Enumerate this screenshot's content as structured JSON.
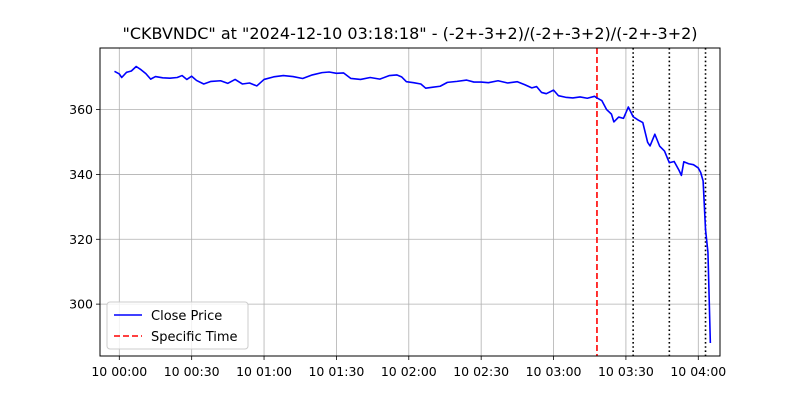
{
  "chart_data": {
    "type": "line",
    "title": "\"CKBVNDC\" at \"2024-12-10 03:18:18\" - (-2+-3+2)/(-2+-3+2)/(-2+-3+2)",
    "xlabel": "",
    "ylabel": "",
    "x_ticks": [
      "10 00:00",
      "10 00:30",
      "10 01:00",
      "10 01:30",
      "10 02:00",
      "10 02:30",
      "10 03:00",
      "10 03:30",
      "10 04:00"
    ],
    "y_ticks": [
      "300",
      "320",
      "340",
      "360"
    ],
    "xlim": [
      "2024-12-09 23:52",
      "2024-12-10 04:09"
    ],
    "ylim": [
      284,
      379
    ],
    "grid": true,
    "legend_position": "lower-left",
    "series": [
      {
        "name": "Close Price",
        "color": "#0000ff",
        "style": "solid",
        "points": [
          [
            "2024-12-09 23:58",
            371.8
          ],
          [
            "2024-12-10 00:00",
            371.0
          ],
          [
            "2024-12-10 00:01",
            369.9
          ],
          [
            "2024-12-10 00:03",
            371.5
          ],
          [
            "2024-12-10 00:05",
            371.9
          ],
          [
            "2024-12-10 00:07",
            373.3
          ],
          [
            "2024-12-10 00:09",
            372.3
          ],
          [
            "2024-12-10 00:11",
            371.1
          ],
          [
            "2024-12-10 00:13",
            369.4
          ],
          [
            "2024-12-10 00:15",
            370.2
          ],
          [
            "2024-12-10 00:18",
            369.8
          ],
          [
            "2024-12-10 00:21",
            369.7
          ],
          [
            "2024-12-10 00:24",
            369.9
          ],
          [
            "2024-12-10 00:26",
            370.5
          ],
          [
            "2024-12-10 00:28",
            369.3
          ],
          [
            "2024-12-10 00:30",
            370.3
          ],
          [
            "2024-12-10 00:32",
            369.0
          ],
          [
            "2024-12-10 00:35",
            367.9
          ],
          [
            "2024-12-10 00:38",
            368.7
          ],
          [
            "2024-12-10 00:42",
            368.9
          ],
          [
            "2024-12-10 00:45",
            368.1
          ],
          [
            "2024-12-10 00:48",
            369.3
          ],
          [
            "2024-12-10 00:51",
            367.9
          ],
          [
            "2024-12-10 00:54",
            368.2
          ],
          [
            "2024-12-10 00:57",
            367.3
          ],
          [
            "2024-12-10 01:00",
            369.3
          ],
          [
            "2024-12-10 01:04",
            370.1
          ],
          [
            "2024-12-10 01:08",
            370.5
          ],
          [
            "2024-12-10 01:12",
            370.2
          ],
          [
            "2024-12-10 01:16",
            369.6
          ],
          [
            "2024-12-10 01:20",
            370.7
          ],
          [
            "2024-12-10 01:24",
            371.4
          ],
          [
            "2024-12-10 01:27",
            371.6
          ],
          [
            "2024-12-10 01:30",
            371.2
          ],
          [
            "2024-12-10 01:33",
            371.3
          ],
          [
            "2024-12-10 01:36",
            369.6
          ],
          [
            "2024-12-10 01:40",
            369.3
          ],
          [
            "2024-12-10 01:44",
            369.9
          ],
          [
            "2024-12-10 01:48",
            369.4
          ],
          [
            "2024-12-10 01:52",
            370.5
          ],
          [
            "2024-12-10 01:55",
            370.7
          ],
          [
            "2024-12-10 01:57",
            370.1
          ],
          [
            "2024-12-10 01:59",
            368.6
          ],
          [
            "2024-12-10 02:02",
            368.3
          ],
          [
            "2024-12-10 02:05",
            367.9
          ],
          [
            "2024-12-10 02:07",
            366.6
          ],
          [
            "2024-12-10 02:10",
            366.9
          ],
          [
            "2024-12-10 02:13",
            367.2
          ],
          [
            "2024-12-10 02:16",
            368.4
          ],
          [
            "2024-12-10 02:20",
            368.7
          ],
          [
            "2024-12-10 02:24",
            369.1
          ],
          [
            "2024-12-10 02:27",
            368.5
          ],
          [
            "2024-12-10 02:30",
            368.5
          ],
          [
            "2024-12-10 02:33",
            368.3
          ],
          [
            "2024-12-10 02:37",
            368.9
          ],
          [
            "2024-12-10 02:41",
            368.2
          ],
          [
            "2024-12-10 02:45",
            368.6
          ],
          [
            "2024-12-10 02:48",
            367.7
          ],
          [
            "2024-12-10 02:51",
            366.7
          ],
          [
            "2024-12-10 02:53",
            367.1
          ],
          [
            "2024-12-10 02:55",
            365.3
          ],
          [
            "2024-12-10 02:57",
            364.9
          ],
          [
            "2024-12-10 03:00",
            366.0
          ],
          [
            "2024-12-10 03:02",
            364.3
          ],
          [
            "2024-12-10 03:05",
            363.8
          ],
          [
            "2024-12-10 03:08",
            363.6
          ],
          [
            "2024-12-10 03:11",
            363.9
          ],
          [
            "2024-12-10 03:14",
            363.5
          ],
          [
            "2024-12-10 03:17",
            364.1
          ],
          [
            "2024-12-10 03:18",
            363.6
          ],
          [
            "2024-12-10 03:20",
            362.8
          ],
          [
            "2024-12-10 03:22",
            360.0
          ],
          [
            "2024-12-10 03:24",
            358.6
          ],
          [
            "2024-12-10 03:25",
            356.2
          ],
          [
            "2024-12-10 03:27",
            357.7
          ],
          [
            "2024-12-10 03:29",
            357.3
          ],
          [
            "2024-12-10 03:31",
            360.8
          ],
          [
            "2024-12-10 03:33",
            357.8
          ],
          [
            "2024-12-10 03:35",
            356.8
          ],
          [
            "2024-12-10 03:37",
            356.0
          ],
          [
            "2024-12-10 03:39",
            349.9
          ],
          [
            "2024-12-10 03:40",
            348.8
          ],
          [
            "2024-12-10 03:42",
            352.4
          ],
          [
            "2024-12-10 03:44",
            348.7
          ],
          [
            "2024-12-10 03:46",
            347.2
          ],
          [
            "2024-12-10 03:48",
            343.6
          ],
          [
            "2024-12-10 03:50",
            344.0
          ],
          [
            "2024-12-10 03:52",
            341.3
          ],
          [
            "2024-12-10 03:53",
            339.7
          ],
          [
            "2024-12-10 03:54",
            343.9
          ],
          [
            "2024-12-10 03:56",
            343.3
          ],
          [
            "2024-12-10 03:58",
            343.0
          ],
          [
            "2024-12-10 04:00",
            342.0
          ],
          [
            "2024-12-10 04:01",
            340.6
          ],
          [
            "2024-12-10 04:02",
            338.0
          ],
          [
            "2024-12-10 04:03",
            323.0
          ],
          [
            "2024-12-10 04:04",
            316.0
          ],
          [
            "2024-12-10 04:05",
            288.0
          ]
        ]
      },
      {
        "name": "Specific Time",
        "color": "#ff0000",
        "style": "dashed",
        "vertical_line_at": "2024-12-10 03:18"
      }
    ],
    "extra_vertical_lines": {
      "color": "#000000",
      "style": "dotted",
      "at": [
        "2024-12-10 03:33",
        "2024-12-10 03:48",
        "2024-12-10 04:03"
      ]
    }
  }
}
